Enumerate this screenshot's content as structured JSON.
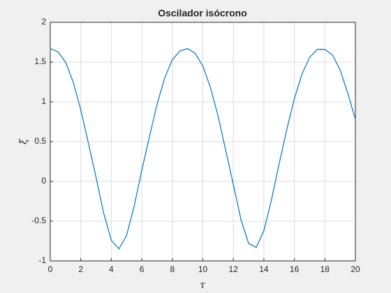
{
  "chart_data": {
    "type": "line",
    "title": "Oscilador isócrono",
    "x_label": "τ",
    "y_label": "ξ",
    "x": [
      0,
      0.5,
      1,
      1.5,
      2,
      2.5,
      3,
      3.5,
      4,
      4.5,
      5,
      5.5,
      6,
      6.5,
      7,
      7.5,
      8,
      8.5,
      9,
      9.5,
      10,
      10.5,
      11,
      11.5,
      12,
      12.5,
      13,
      13.5,
      14,
      14.5,
      15,
      15.5,
      16,
      16.5,
      17,
      17.5,
      18,
      18.5,
      19,
      19.5,
      20
    ],
    "series": [
      {
        "color": "#0072bd",
        "values": [
          1.67,
          1.63,
          1.5,
          1.25,
          0.9,
          0.48,
          0.05,
          -0.4,
          -0.74,
          -0.85,
          -0.68,
          -0.31,
          0.14,
          0.56,
          0.97,
          1.3,
          1.53,
          1.64,
          1.67,
          1.61,
          1.45,
          1.18,
          0.82,
          0.39,
          -0.04,
          -0.48,
          -0.78,
          -0.83,
          -0.62,
          -0.23,
          0.22,
          0.65,
          1.04,
          1.35,
          1.56,
          1.66,
          1.66,
          1.59,
          1.4,
          1.11,
          0.78
        ]
      }
    ],
    "xlim": [
      0,
      20
    ],
    "xticks": [
      0,
      2,
      4,
      6,
      8,
      10,
      12,
      14,
      16,
      18,
      20
    ],
    "ylim": [
      -1,
      2
    ],
    "yticks": [
      -1,
      -0.5,
      0,
      0.5,
      1,
      1.5,
      2
    ],
    "grid": true
  }
}
